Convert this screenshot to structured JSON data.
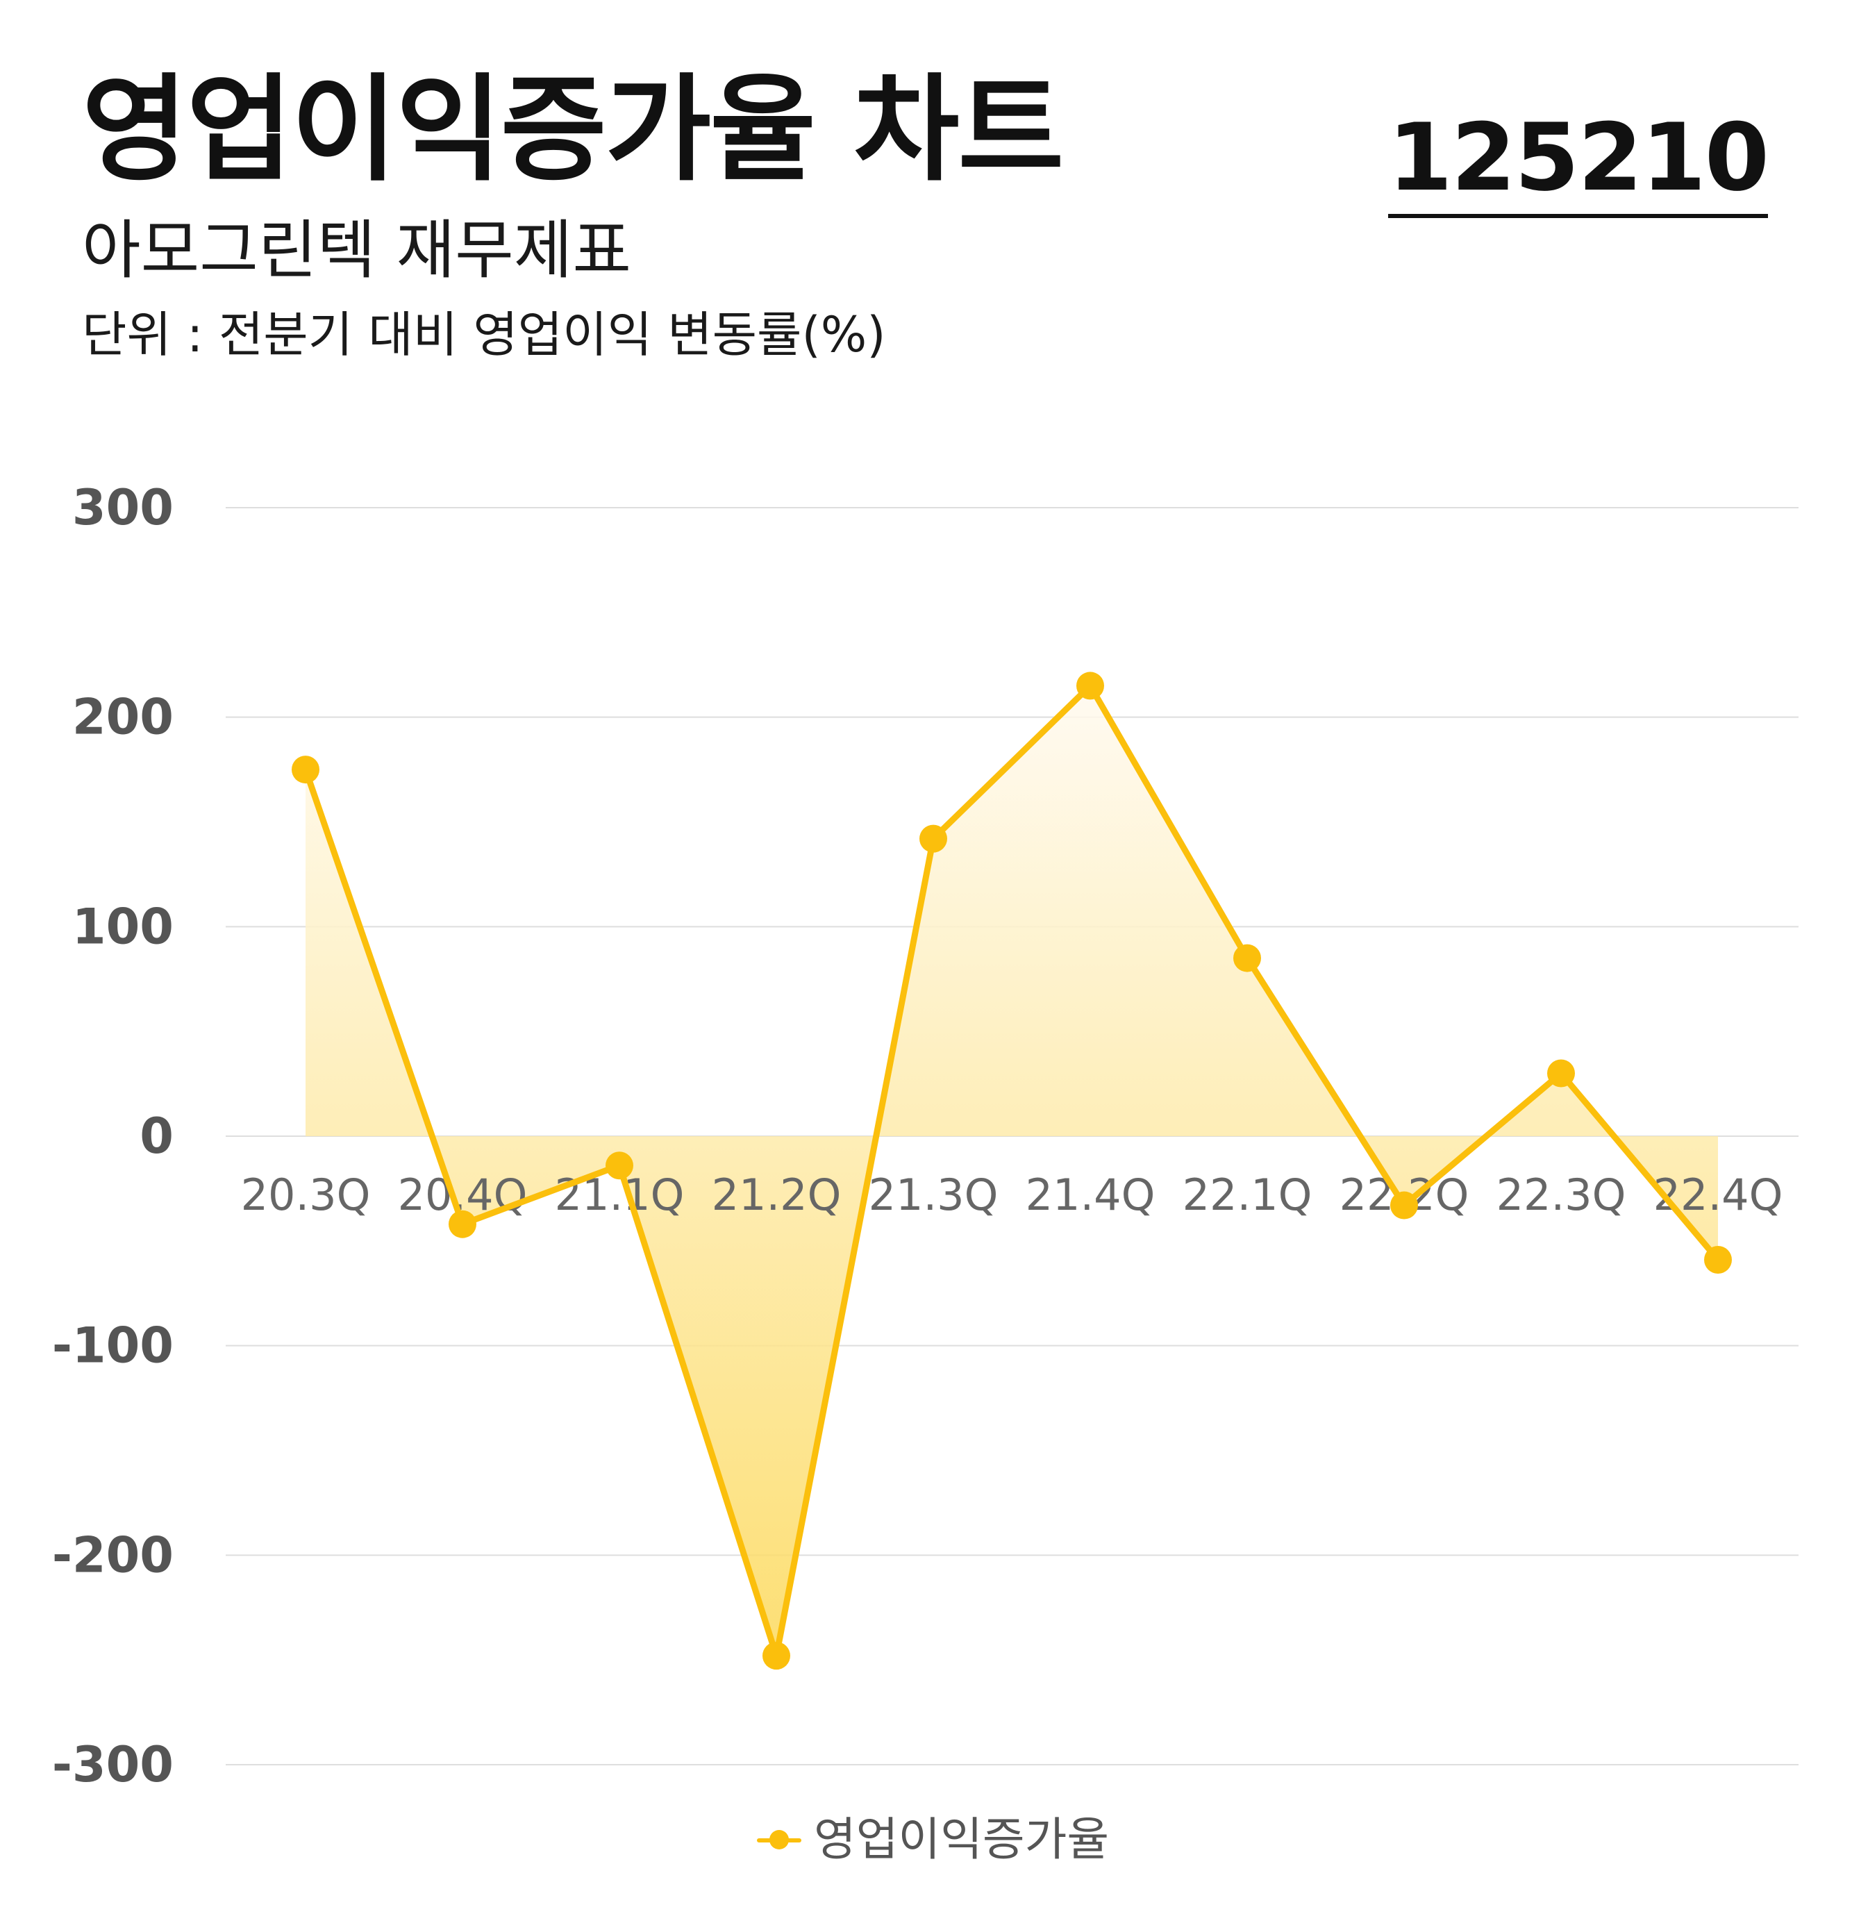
{
  "header": {
    "title": "영업이익증가율 차트",
    "stock_code": "125210",
    "subtitle": "아모그린텍 재무제표",
    "unit": "단위 : 전분기 대비 영업이익 변동률(%)"
  },
  "chart_data": {
    "type": "area",
    "categories": [
      "20.3Q",
      "20.4Q",
      "21.1Q",
      "21.2Q",
      "21.3Q",
      "21.4Q",
      "22.1Q",
      "22.2Q",
      "22.3Q",
      "22.4Q"
    ],
    "series": [
      {
        "name": "영업이익증가율",
        "values": [
          175,
          -42,
          -14,
          -248,
          142,
          215,
          85,
          -33,
          30,
          -59
        ]
      }
    ],
    "yticks": [
      "300",
      "200",
      "100",
      "0",
      "-100",
      "-200",
      "-300"
    ],
    "ylim": [
      -300,
      300
    ],
    "grid": true,
    "legend": "bottom-center",
    "colors": {
      "line": "#fbbf0c",
      "fill_top": "#fffaf0",
      "fill_bottom": "#fcd95a",
      "grid": "#dedede",
      "ytick": "#555555",
      "xtick": "#666666"
    }
  }
}
